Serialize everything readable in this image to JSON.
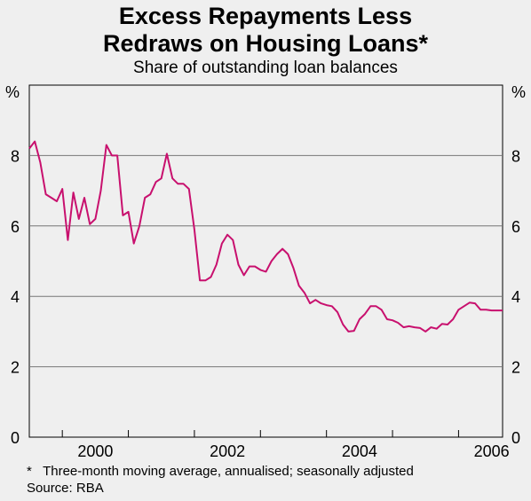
{
  "chart_data": {
    "type": "line",
    "title": "Excess Repayments Less",
    "title_line2": "Redraws on Housing Loans*",
    "subtitle": "Share of outstanding loan balances",
    "ylabel_left": "%",
    "ylabel_right": "%",
    "ylim": [
      0,
      10
    ],
    "yticks": [
      0,
      2,
      4,
      6,
      8
    ],
    "xlim": [
      1999.5,
      2006.6667
    ],
    "xticks": [
      "2000",
      "2002",
      "2004",
      "2006"
    ],
    "xtick_positions": [
      2000,
      2002,
      2004,
      2006
    ],
    "grid": true,
    "line_color": "#c8106e",
    "series": [
      {
        "x": [
          1999.5,
          1999.583,
          1999.667,
          1999.75,
          1999.833,
          1999.917,
          2000.0,
          2000.083,
          2000.167,
          2000.25,
          2000.333,
          2000.417,
          2000.5,
          2000.583,
          2000.667,
          2000.75,
          2000.833,
          2000.917,
          2001.0,
          2001.083,
          2001.167,
          2001.25,
          2001.333,
          2001.417,
          2001.5,
          2001.583,
          2001.667,
          2001.75,
          2001.833,
          2001.917,
          2002.0,
          2002.083,
          2002.167,
          2002.25,
          2002.333,
          2002.417,
          2002.5,
          2002.583,
          2002.667,
          2002.75,
          2002.833,
          2002.917,
          2003.0,
          2003.083,
          2003.167,
          2003.25,
          2003.333,
          2003.417,
          2003.5,
          2003.583,
          2003.667,
          2003.75,
          2003.833,
          2003.917,
          2004.0,
          2004.083,
          2004.167,
          2004.25,
          2004.333,
          2004.417,
          2004.5,
          2004.583,
          2004.667,
          2004.75,
          2004.833,
          2004.917,
          2005.0,
          2005.083,
          2005.167,
          2005.25,
          2005.333,
          2005.417,
          2005.5,
          2005.583,
          2005.667,
          2005.75,
          2005.833,
          2005.917,
          2006.0,
          2006.083,
          2006.167,
          2006.25,
          2006.333,
          2006.417,
          2006.5,
          2006.583,
          2006.667
        ],
        "y": [
          8.2,
          8.4,
          7.8,
          6.9,
          6.8,
          6.7,
          7.05,
          5.6,
          6.95,
          6.2,
          6.8,
          6.05,
          6.2,
          7.0,
          8.3,
          8.0,
          8.0,
          6.3,
          6.4,
          5.5,
          6.0,
          6.8,
          6.9,
          7.25,
          7.35,
          8.05,
          7.35,
          7.2,
          7.2,
          7.05,
          5.9,
          4.45,
          4.45,
          4.55,
          4.9,
          5.5,
          5.75,
          5.6,
          4.9,
          4.6,
          4.85,
          4.85,
          4.75,
          4.7,
          5.0,
          5.2,
          5.35,
          5.2,
          4.8,
          4.3,
          4.1,
          3.8,
          3.9,
          3.8,
          3.75,
          3.72,
          3.55,
          3.2,
          3.0,
          3.02,
          3.35,
          3.5,
          3.72,
          3.72,
          3.62,
          3.35,
          3.32,
          3.25,
          3.12,
          3.15,
          3.12,
          3.1,
          3.0,
          3.12,
          3.08,
          3.22,
          3.2,
          3.35,
          3.62,
          3.72,
          3.82,
          3.8,
          3.62,
          3.62,
          3.6,
          3.6,
          3.6
        ]
      }
    ]
  },
  "notes": {
    "footnote": "*   Three-month moving average, annualised; seasonally adjusted",
    "source": "Source: RBA"
  }
}
